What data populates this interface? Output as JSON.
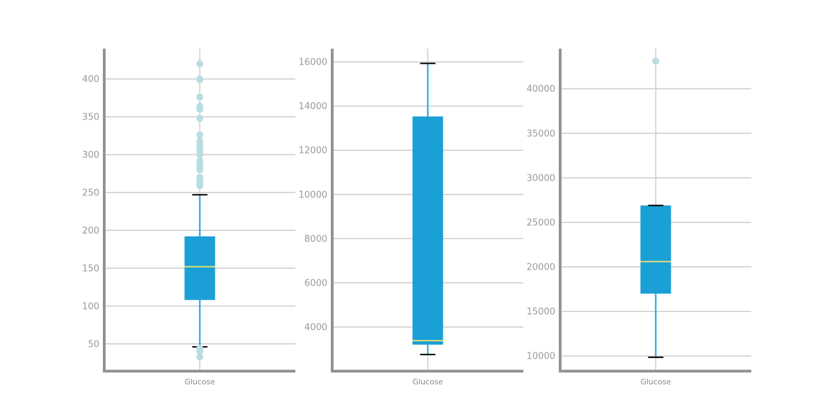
{
  "colors": {
    "box_fill": "#1a9fd6",
    "median": "#e6df73",
    "whisker": "#1a9fd6",
    "cap": "#000000",
    "outlier": "#b8dde0",
    "grid": "#cccccc",
    "axis": "#939393",
    "tick_text": "#999999"
  },
  "chart_data": [
    {
      "type": "box",
      "category": "Glucose",
      "ylim": [
        14,
        440
      ],
      "yticks": [
        50,
        100,
        150,
        200,
        250,
        300,
        350,
        400
      ],
      "q1": 108,
      "median": 152,
      "q3": 192,
      "whisker_low": 46,
      "whisker_high": 247,
      "outliers": [
        33,
        40,
        44,
        259,
        262,
        265,
        270,
        280,
        282,
        288,
        292,
        300,
        303,
        308,
        312,
        318,
        326,
        348,
        360,
        364,
        376,
        399,
        400,
        420
      ],
      "grid": true
    },
    {
      "type": "box",
      "category": "Glucose",
      "ylim": [
        2000,
        16600
      ],
      "yticks": [
        4000,
        6000,
        8000,
        10000,
        12000,
        14000,
        16000
      ],
      "q1": 3200,
      "median": 3380,
      "q3": 13530,
      "whisker_low": 2750,
      "whisker_high": 15930,
      "outliers": [],
      "grid": true
    },
    {
      "type": "box",
      "category": "Glucose",
      "ylim": [
        8300,
        44500
      ],
      "yticks": [
        10000,
        15000,
        20000,
        25000,
        30000,
        35000,
        40000
      ],
      "q1": 17000,
      "median": 20600,
      "q3": 26900,
      "whisker_low": 9850,
      "whisker_high": 26900,
      "outliers": [
        43100
      ],
      "grid": true
    }
  ]
}
